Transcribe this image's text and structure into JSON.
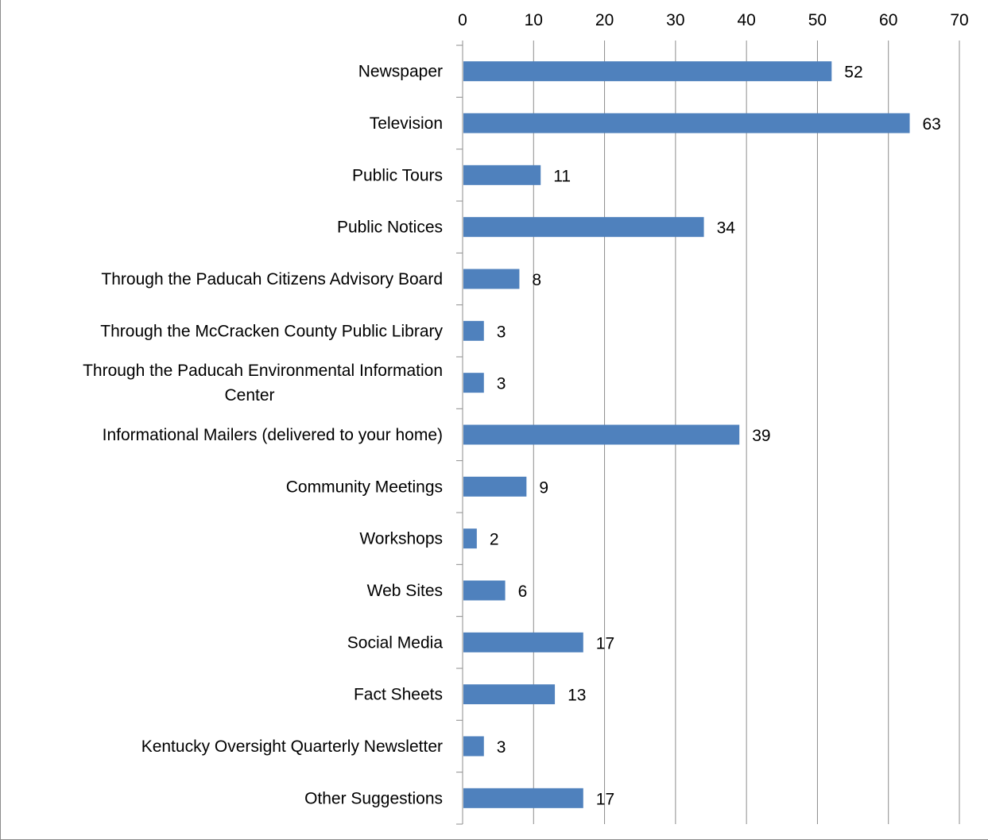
{
  "chart_data": {
    "type": "bar",
    "orientation": "horizontal",
    "title": "",
    "xlabel": "",
    "ylabel": "",
    "xlim": [
      0,
      70
    ],
    "x_ticks": [
      0,
      10,
      20,
      30,
      40,
      50,
      60,
      70
    ],
    "x_axis_position": "top",
    "grid": "vertical major gridlines",
    "legend": "none",
    "bar_color": "#4f81bd",
    "categories": [
      [
        "Newspaper"
      ],
      [
        "Television"
      ],
      [
        "Public Tours"
      ],
      [
        "Public Notices"
      ],
      [
        "Through the Paducah Citizens Advisory Board"
      ],
      [
        "Through the McCracken County Public Library"
      ],
      [
        "Through the Paducah Environmental Information",
        "Center"
      ],
      [
        "Informational Mailers (delivered to your home)"
      ],
      [
        "Community Meetings"
      ],
      [
        "Workshops"
      ],
      [
        "Web Sites"
      ],
      [
        "Social Media"
      ],
      [
        "Fact Sheets"
      ],
      [
        "Kentucky Oversight Quarterly Newsletter"
      ],
      [
        "Other Suggestions"
      ]
    ],
    "values": [
      52,
      63,
      11,
      34,
      8,
      3,
      3,
      39,
      9,
      2,
      6,
      17,
      13,
      3,
      17
    ],
    "data_labels": true
  }
}
